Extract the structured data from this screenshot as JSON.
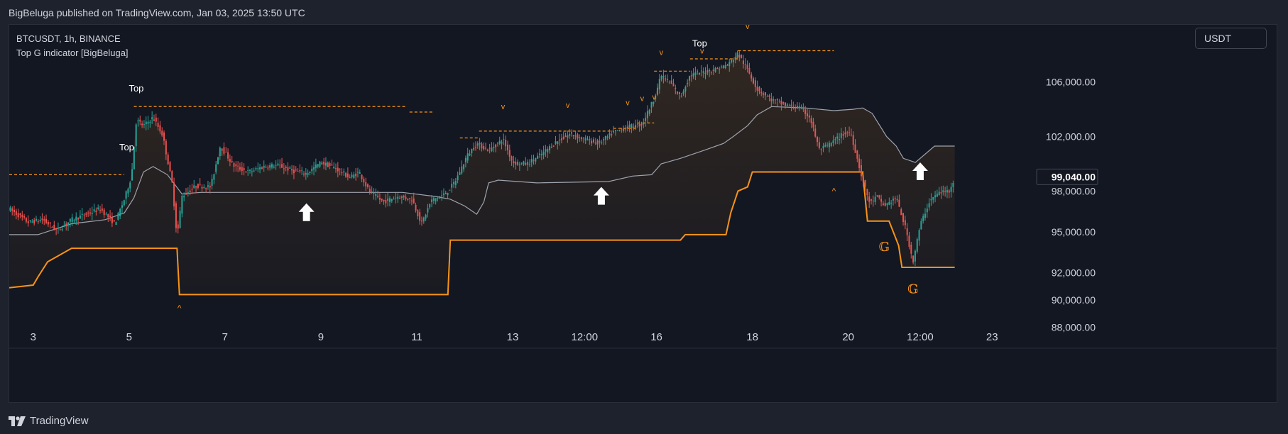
{
  "header": {
    "publish_line": "BigBeluga published on TradingView.com, Jan 03, 2025 13:50 UTC"
  },
  "legend": {
    "symbol_line": "BTCUSDT, 1h, BINANCE",
    "indicator_line": "Top G indicator [BigBeluga]"
  },
  "currency_button": {
    "label": "USDT"
  },
  "footer": {
    "brand": "TradingView"
  },
  "colors": {
    "background": "#131722",
    "up_candle": "#26a69a",
    "down_candle": "#ef5350",
    "support_band": "#f7931a",
    "resistance_dashed": "#f7931a",
    "average_line": "#9ea3ad",
    "arrow": "#ffffff"
  },
  "chart_data": {
    "type": "candlestick",
    "symbol": "BTCUSDT",
    "interval": "1h",
    "exchange": "BINANCE",
    "ylim": [
      87300,
      110200
    ],
    "grid": false,
    "y_ticks": [
      {
        "value": 106000,
        "label": "106,000.00"
      },
      {
        "value": 102000,
        "label": "102,000.00"
      },
      {
        "value": 98000,
        "label": "98,000.00"
      },
      {
        "value": 95000,
        "label": "95,000.00"
      },
      {
        "value": 92000,
        "label": "92,000.00"
      },
      {
        "value": 90000,
        "label": "90,000.00"
      },
      {
        "value": 88000,
        "label": "88,000.00"
      }
    ],
    "last_price": {
      "value": 99040,
      "label": "99,040.00"
    },
    "x_ticks": [
      {
        "pos": 2.5,
        "label": "3"
      },
      {
        "pos": 4.5,
        "label": "5"
      },
      {
        "pos": 6.5,
        "label": "7"
      },
      {
        "pos": 8.5,
        "label": "9"
      },
      {
        "pos": 10.5,
        "label": "11"
      },
      {
        "pos": 12.5,
        "label": "13"
      },
      {
        "pos": 14.0,
        "label": "12:00"
      },
      {
        "pos": 15.5,
        "label": "16"
      },
      {
        "pos": 17.5,
        "label": "18"
      },
      {
        "pos": 19.5,
        "label": "20"
      },
      {
        "pos": 21.0,
        "label": "12:00"
      },
      {
        "pos": 22.5,
        "label": "23"
      }
    ],
    "xlim": [
      2.0,
      23.0
    ],
    "price_path": [
      [
        2.0,
        96700
      ],
      [
        2.4,
        95700
      ],
      [
        2.7,
        95900
      ],
      [
        3.0,
        95100
      ],
      [
        3.3,
        95900
      ],
      [
        3.6,
        96300
      ],
      [
        3.9,
        96700
      ],
      [
        4.2,
        95600
      ],
      [
        4.4,
        97400
      ],
      [
        4.55,
        99100
      ],
      [
        4.65,
        103200
      ],
      [
        4.8,
        102800
      ],
      [
        5.0,
        103400
      ],
      [
        5.2,
        102100
      ],
      [
        5.4,
        98500
      ],
      [
        5.5,
        94600
      ],
      [
        5.6,
        97600
      ],
      [
        5.9,
        98400
      ],
      [
        6.2,
        98300
      ],
      [
        6.4,
        101300
      ],
      [
        6.7,
        99800
      ],
      [
        7.0,
        99400
      ],
      [
        7.3,
        99800
      ],
      [
        7.6,
        99900
      ],
      [
        7.9,
        99500
      ],
      [
        8.2,
        99300
      ],
      [
        8.5,
        100100
      ],
      [
        8.8,
        99700
      ],
      [
        9.1,
        99000
      ],
      [
        9.3,
        99400
      ],
      [
        9.5,
        98000
      ],
      [
        9.8,
        97200
      ],
      [
        10.1,
        97600
      ],
      [
        10.4,
        97400
      ],
      [
        10.6,
        95600
      ],
      [
        10.8,
        97300
      ],
      [
        11.1,
        97800
      ],
      [
        11.3,
        98700
      ],
      [
        11.55,
        100600
      ],
      [
        11.75,
        101500
      ],
      [
        12.0,
        101000
      ],
      [
        12.3,
        101800
      ],
      [
        12.5,
        100100
      ],
      [
        12.8,
        100000
      ],
      [
        13.1,
        100700
      ],
      [
        13.4,
        101600
      ],
      [
        13.7,
        102200
      ],
      [
        14.0,
        101800
      ],
      [
        14.3,
        101500
      ],
      [
        14.6,
        102300
      ],
      [
        14.9,
        102700
      ],
      [
        15.2,
        102900
      ],
      [
        15.45,
        104800
      ],
      [
        15.6,
        106500
      ],
      [
        15.8,
        105900
      ],
      [
        16.0,
        104900
      ],
      [
        16.2,
        106500
      ],
      [
        16.4,
        106700
      ],
      [
        16.7,
        106900
      ],
      [
        17.0,
        107300
      ],
      [
        17.2,
        108100
      ],
      [
        17.4,
        106900
      ],
      [
        17.6,
        105500
      ],
      [
        17.9,
        104700
      ],
      [
        18.2,
        104300
      ],
      [
        18.5,
        104100
      ],
      [
        18.7,
        103400
      ],
      [
        18.9,
        101000
      ],
      [
        19.1,
        101400
      ],
      [
        19.4,
        102200
      ],
      [
        19.55,
        102300
      ],
      [
        19.7,
        100200
      ],
      [
        19.8,
        98800
      ],
      [
        19.95,
        97100
      ],
      [
        20.1,
        97600
      ],
      [
        20.25,
        96900
      ],
      [
        20.5,
        97500
      ],
      [
        20.7,
        95200
      ],
      [
        20.85,
        92800
      ],
      [
        21.0,
        95500
      ],
      [
        21.2,
        97300
      ],
      [
        21.4,
        97900
      ],
      [
        21.6,
        98000
      ],
      [
        21.72,
        99040
      ]
    ],
    "support_band": [
      [
        2.0,
        90900
      ],
      [
        2.5,
        91100
      ],
      [
        2.6,
        91700
      ],
      [
        2.8,
        92800
      ],
      [
        3.0,
        93200
      ],
      [
        3.3,
        93800
      ],
      [
        5.5,
        93800
      ],
      [
        5.55,
        90400
      ],
      [
        11.15,
        90400
      ],
      [
        11.2,
        94400
      ],
      [
        16.0,
        94400
      ],
      [
        16.1,
        94800
      ],
      [
        16.95,
        94800
      ],
      [
        17.05,
        96400
      ],
      [
        17.2,
        98000
      ],
      [
        17.4,
        98300
      ],
      [
        17.5,
        99400
      ],
      [
        19.2,
        99400
      ],
      [
        19.8,
        99400
      ],
      [
        19.9,
        95800
      ],
      [
        20.35,
        95800
      ],
      [
        20.55,
        94000
      ],
      [
        20.62,
        92400
      ],
      [
        21.72,
        92400
      ]
    ],
    "resistance_levels": [
      {
        "x0": 2.0,
        "x1": 4.4,
        "value": 99200
      },
      {
        "x0": 4.6,
        "x1": 10.3,
        "value": 104200
      },
      {
        "x0": 10.35,
        "x1": 10.85,
        "value": 103800
      },
      {
        "x0": 11.4,
        "x1": 11.8,
        "value": 101900
      },
      {
        "x0": 11.8,
        "x1": 13.65,
        "value": 102400
      },
      {
        "x0": 13.65,
        "x1": 14.6,
        "value": 102400
      },
      {
        "x0": 14.6,
        "x1": 15.1,
        "value": 102600
      },
      {
        "x0": 15.1,
        "x1": 15.45,
        "value": 103000
      },
      {
        "x0": 15.45,
        "x1": 16.2,
        "value": 106800
      },
      {
        "x0": 16.2,
        "x1": 17.2,
        "value": 107700
      },
      {
        "x0": 17.2,
        "x1": 19.2,
        "value": 108300
      }
    ],
    "average_line": [
      [
        2.0,
        94800
      ],
      [
        2.6,
        94800
      ],
      [
        3.3,
        95600
      ],
      [
        4.0,
        95900
      ],
      [
        4.4,
        96400
      ],
      [
        4.6,
        97500
      ],
      [
        4.8,
        99400
      ],
      [
        5.0,
        99800
      ],
      [
        5.3,
        99200
      ],
      [
        5.6,
        97800
      ],
      [
        6.0,
        97900
      ],
      [
        10.2,
        97900
      ],
      [
        10.9,
        97600
      ],
      [
        11.2,
        97400
      ],
      [
        11.5,
        96900
      ],
      [
        11.75,
        96300
      ],
      [
        11.9,
        97200
      ],
      [
        12.0,
        98600
      ],
      [
        12.2,
        98800
      ],
      [
        13.0,
        98600
      ],
      [
        14.5,
        98700
      ],
      [
        15.0,
        99100
      ],
      [
        15.4,
        99200
      ],
      [
        15.6,
        100000
      ],
      [
        16.0,
        100400
      ],
      [
        16.5,
        101000
      ],
      [
        16.9,
        101500
      ],
      [
        17.1,
        102000
      ],
      [
        17.4,
        102800
      ],
      [
        17.6,
        103600
      ],
      [
        17.9,
        104200
      ],
      [
        18.6,
        104100
      ],
      [
        19.2,
        103900
      ],
      [
        19.6,
        104000
      ],
      [
        19.8,
        104100
      ],
      [
        20.0,
        103700
      ],
      [
        20.3,
        102000
      ],
      [
        20.5,
        101300
      ],
      [
        20.65,
        100400
      ],
      [
        20.9,
        100100
      ],
      [
        21.3,
        101300
      ],
      [
        21.72,
        101300
      ]
    ],
    "markers": {
      "top_labels": [
        {
          "x": 4.65,
          "value": 105300,
          "text": "Top"
        },
        {
          "x": 4.45,
          "value": 101000,
          "text": "Top"
        },
        {
          "x": 16.4,
          "value": 108600,
          "text": "Top"
        }
      ],
      "v_marks": [
        {
          "x": 12.3,
          "value": 104000,
          "text": "v"
        },
        {
          "x": 13.65,
          "value": 104100,
          "text": "v"
        },
        {
          "x": 14.9,
          "value": 104300,
          "text": "v"
        },
        {
          "x": 15.2,
          "value": 104600,
          "text": "v"
        },
        {
          "x": 15.45,
          "value": 104700,
          "text": "v"
        },
        {
          "x": 15.6,
          "value": 108000,
          "text": "v"
        },
        {
          "x": 16.45,
          "value": 108100,
          "text": "v"
        },
        {
          "x": 17.4,
          "value": 109900,
          "text": "v"
        }
      ],
      "caret_marks": [
        {
          "x": 5.55,
          "value": 89200,
          "text": "^"
        },
        {
          "x": 19.2,
          "value": 97800,
          "text": "^"
        }
      ],
      "g_marks": [
        {
          "x": 20.25,
          "value": 93600,
          "text": "𝔾"
        },
        {
          "x": 20.85,
          "value": 90500,
          "text": "𝔾"
        }
      ],
      "up_arrows": [
        {
          "x": 8.2,
          "value": 97100
        },
        {
          "x": 14.35,
          "value": 98300
        },
        {
          "x": 21.0,
          "value": 100100
        }
      ]
    }
  }
}
